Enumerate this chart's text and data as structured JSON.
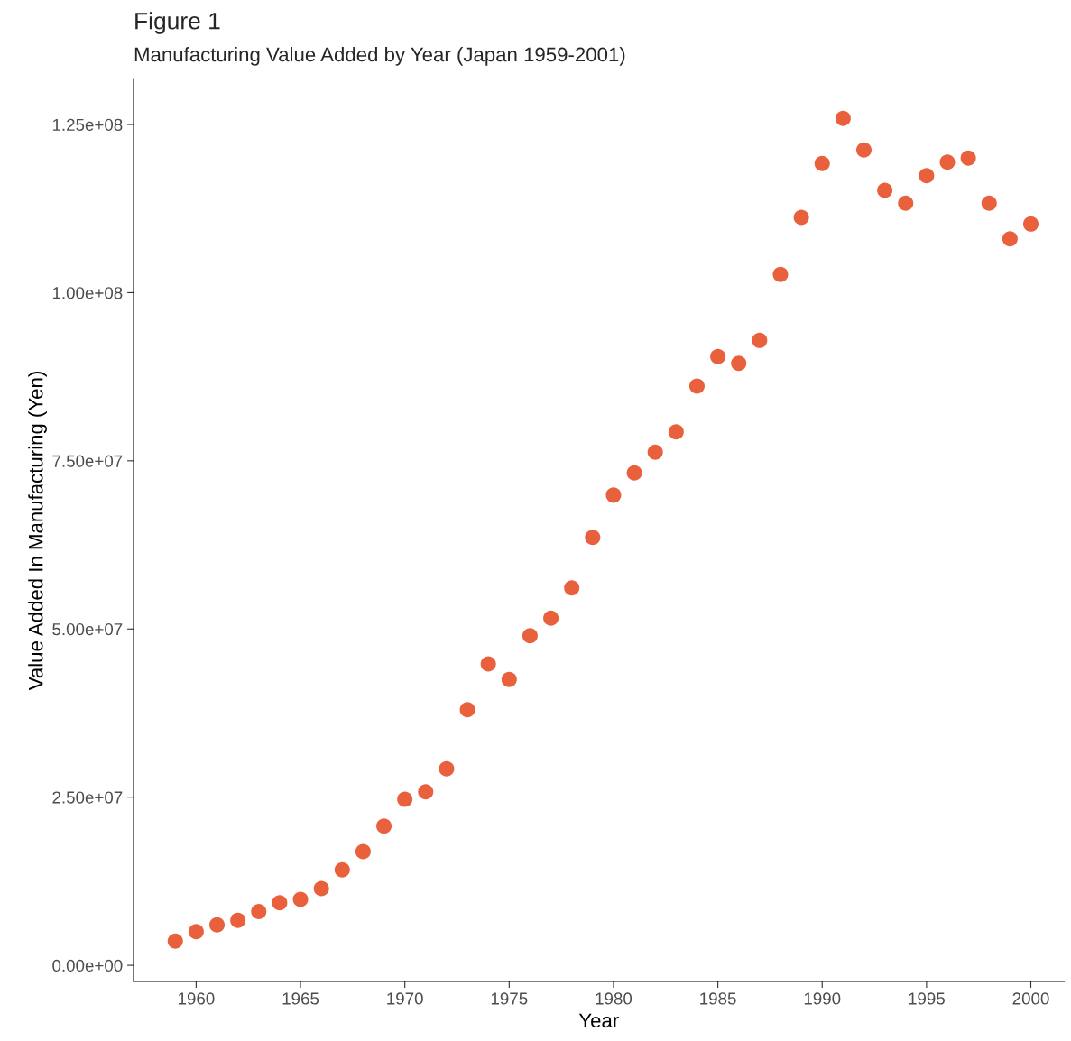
{
  "chart_data": {
    "type": "scatter",
    "title": "Figure 1",
    "subtitle": "Manufacturing Value Added by Year (Japan 1959-2001)",
    "xlabel": "Year",
    "ylabel": "Value Added In Manufacturing (Yen)",
    "x": [
      1959,
      1960,
      1961,
      1962,
      1963,
      1964,
      1965,
      1966,
      1967,
      1968,
      1969,
      1970,
      1971,
      1972,
      1973,
      1974,
      1975,
      1976,
      1977,
      1978,
      1979,
      1980,
      1981,
      1982,
      1983,
      1984,
      1985,
      1986,
      1987,
      1988,
      1989,
      1990,
      1991,
      1992,
      1993,
      1994,
      1995,
      1996,
      1997,
      1998,
      1999,
      2000
    ],
    "series": [
      {
        "color": "#e8603c",
        "values": [
          3600000,
          5000000,
          6000000,
          6700000,
          8000000,
          9300000,
          9800000,
          11400000,
          14200000,
          16900000,
          20700000,
          24700000,
          25800000,
          29200000,
          38000000,
          44800000,
          42500000,
          49000000,
          51600000,
          56100000,
          63600000,
          69900000,
          73200000,
          76300000,
          79300000,
          86100000,
          90500000,
          89500000,
          92900000,
          102700000,
          111200000,
          119200000,
          125900000,
          121200000,
          115200000,
          113300000,
          117400000,
          119400000,
          120000000,
          113300000,
          108000000,
          110200000
        ]
      }
    ],
    "marker": "circle",
    "grid": false,
    "xlim": [
      1957.0,
      2001.6
    ],
    "xticks": [
      1960,
      1965,
      1970,
      1975,
      1980,
      1985,
      1990,
      1995,
      2000
    ],
    "ylim": [
      -2400000,
      131700000
    ],
    "yticks": [
      {
        "value": 0,
        "label": "0.00e+00"
      },
      {
        "value": 25000000,
        "label": "2.50e+07"
      },
      {
        "value": 50000000,
        "label": "5.00e+07"
      },
      {
        "value": 75000000,
        "label": "7.50e+07"
      },
      {
        "value": 100000000,
        "label": "1.00e+08"
      },
      {
        "value": 125000000,
        "label": "1.25e+08"
      }
    ]
  }
}
